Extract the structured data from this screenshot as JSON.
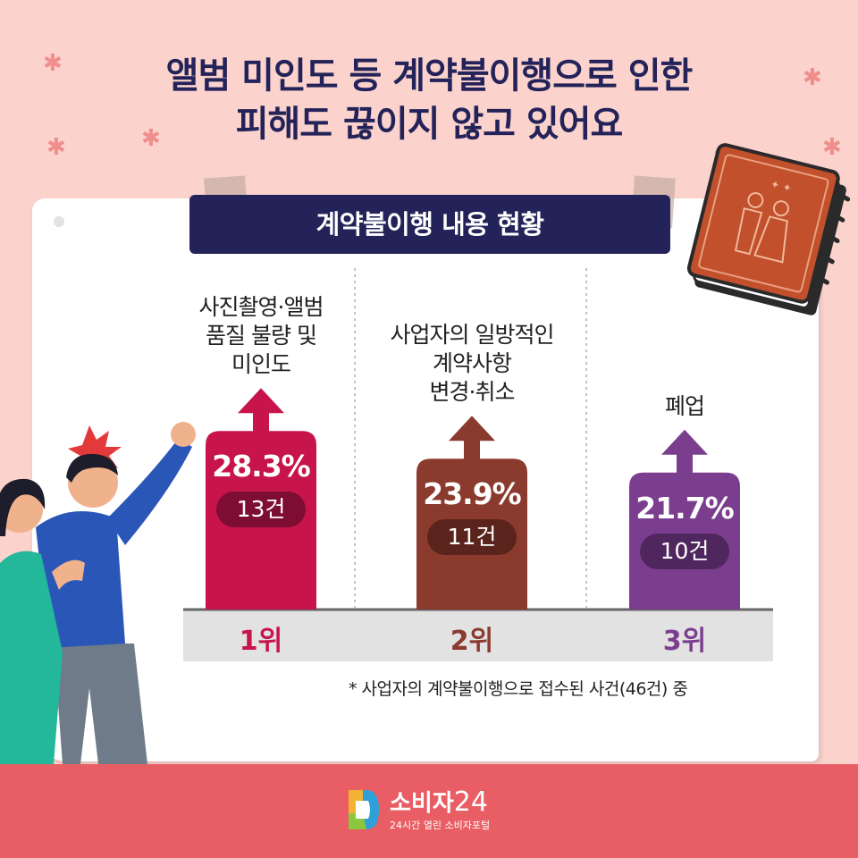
{
  "headline": {
    "line1": "앨범 미인도 등 계약불이행으로 인한",
    "line2": "피해도 끊이지 않고 있어요"
  },
  "banner_title": "계약불이행 내용 현황",
  "chart_data": {
    "type": "bar",
    "categories": [
      [
        "사진촬영·앨범",
        "품질 불량 및",
        "미인도"
      ],
      [
        "사업자의 일방적인",
        "계약사항",
        "변경·취소"
      ],
      [
        "폐업"
      ]
    ],
    "series": [
      {
        "values": [
          28.3,
          23.9,
          21.7
        ]
      }
    ],
    "percent_labels": [
      "28.3%",
      "23.9%",
      "21.7%"
    ],
    "counts": [
      "13건",
      "11건",
      "10건"
    ],
    "ranks": [
      "1위",
      "2위",
      "3위"
    ],
    "colors": [
      "#c7154c",
      "#8b3a2e",
      "#7b3e8e"
    ],
    "count_pill_colors": [
      "#7e0d33",
      "#5a241c",
      "#4f265d"
    ],
    "rank_colors": [
      "#c7154c",
      "#8b3a2e",
      "#7b3e8e"
    ],
    "ylim": [
      0,
      30
    ]
  },
  "footnote": "* 사업자의 계약불이행으로 접수된 사건(46건) 중",
  "brand": {
    "name": "소비자",
    "number": "24",
    "tagline": "24시간 열린 소비자포털"
  }
}
